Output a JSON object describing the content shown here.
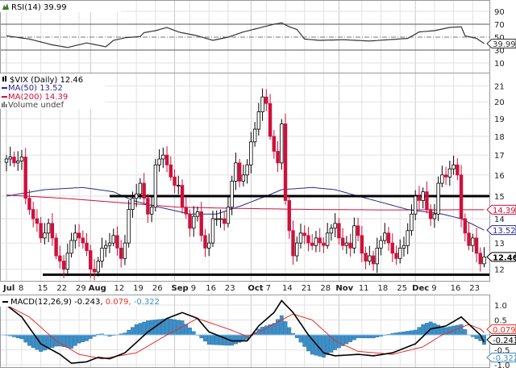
{
  "colors": {
    "up": "#000000",
    "down": "#d0103a",
    "ma50": "#2a2a90",
    "ma200": "#d0103a",
    "macd": "#000000",
    "signal": "#e8302a",
    "hist": "#3d8fc8",
    "support": "#000000"
  },
  "rsi_panel": {
    "label": "RSI(14)",
    "value": "39.99",
    "icon": "rsi-chart-icon"
  },
  "price_panel": {
    "label": "$VIX (Daily)",
    "value": "12.46",
    "legend": [
      {
        "name": "MA(50)",
        "value": "13.52",
        "color": "#2a2a90"
      },
      {
        "name": "MA(200)",
        "value": "14.39",
        "color": "#d0103a"
      },
      {
        "name": "Volume",
        "value": "undef",
        "color": "#555555"
      }
    ]
  },
  "macd_panel": {
    "label": "MACD(12,26,9)",
    "macd": "-0.243",
    "signal": "0.079",
    "hist": "-0.322"
  },
  "chart_data": {
    "type": "candlestick",
    "title": "$VIX (Daily)",
    "scale": "log",
    "ylim": [
      11.5,
      22
    ],
    "y_ticks": [
      12,
      13,
      14,
      15,
      16,
      17,
      18,
      19,
      20,
      21
    ],
    "support_lines": [
      15,
      11.8
    ],
    "x_ticks": [
      {
        "label": "Jul",
        "day": 0,
        "month": true
      },
      {
        "label": "8",
        "day": 4
      },
      {
        "label": "15",
        "day": 9
      },
      {
        "label": "22",
        "day": 14
      },
      {
        "label": "29",
        "day": 19
      },
      {
        "label": "Aug",
        "day": 22,
        "month": true
      },
      {
        "label": "12",
        "day": 29
      },
      {
        "label": "19",
        "day": 34
      },
      {
        "label": "26",
        "day": 39
      },
      {
        "label": "Sep",
        "day": 44,
        "month": true
      },
      {
        "label": "9",
        "day": 48
      },
      {
        "label": "16",
        "day": 53
      },
      {
        "label": "23",
        "day": 58
      },
      {
        "label": "Oct",
        "day": 64,
        "month": true
      },
      {
        "label": "7",
        "day": 68
      },
      {
        "label": "14",
        "day": 73
      },
      {
        "label": "21",
        "day": 78
      },
      {
        "label": "28",
        "day": 83
      },
      {
        "label": "Nov",
        "day": 87,
        "month": true
      },
      {
        "label": "11",
        "day": 93
      },
      {
        "label": "18",
        "day": 98
      },
      {
        "label": "25",
        "day": 103
      },
      {
        "label": "Dec",
        "day": 107,
        "month": true
      },
      {
        "label": "9",
        "day": 112
      },
      {
        "label": "16",
        "day": 117
      },
      {
        "label": "23",
        "day": 122
      }
    ],
    "close": [
      16.8,
      16.9,
      16.6,
      16.7,
      16.9,
      14.9,
      14.4,
      14.0,
      13.8,
      13.2,
      13.4,
      13.8,
      13.2,
      12.5,
      12.3,
      12.0,
      12.6,
      13.1,
      13.4,
      13.2,
      13.0,
      12.7,
      12.0,
      11.9,
      12.3,
      12.8,
      12.9,
      13.0,
      13.3,
      12.8,
      12.4,
      13.0,
      14.4,
      14.9,
      15.1,
      15.6,
      14.9,
      14.2,
      14.5,
      16.5,
      16.8,
      17.0,
      16.5,
      15.9,
      15.5,
      15.5,
      14.5,
      14.2,
      13.6,
      14.1,
      14.3,
      13.3,
      12.8,
      13.0,
      14.0,
      14.0,
      14.0,
      13.8,
      14.5,
      15.7,
      16.6,
      15.7,
      16.0,
      16.5,
      17.7,
      18.4,
      19.4,
      20.3,
      19.9,
      18.0,
      17.2,
      16.6,
      18.7,
      14.8,
      13.5,
      12.5,
      13.0,
      13.4,
      13.3,
      13.0,
      12.9,
      13.2,
      13.0,
      12.9,
      13.4,
      13.6,
      13.8,
      13.2,
      12.9,
      13.0,
      12.8,
      13.7,
      13.3,
      12.6,
      12.3,
      12.5,
      12.2,
      12.8,
      13.1,
      13.4,
      13.0,
      12.6,
      12.4,
      12.8,
      12.9,
      13.5,
      14.2,
      15.0,
      14.8,
      15.2,
      14.4,
      14.0,
      14.2,
      15.6,
      16.0,
      15.9,
      16.3,
      16.5,
      16.0,
      14.0,
      13.4,
      12.9,
      13.2,
      12.6,
      12.2,
      12.46
    ],
    "ma50": [
      [
        0,
        15.0
      ],
      [
        10,
        15.3
      ],
      [
        20,
        15.4
      ],
      [
        28,
        15.2
      ],
      [
        33,
        14.8
      ],
      [
        40,
        14.5
      ],
      [
        48,
        14.2
      ],
      [
        55,
        14.2
      ],
      [
        62,
        14.6
      ],
      [
        68,
        15.0
      ],
      [
        72,
        15.3
      ],
      [
        80,
        15.4
      ],
      [
        86,
        15.3
      ],
      [
        92,
        15.0
      ],
      [
        105,
        14.4
      ],
      [
        114,
        14.2
      ],
      [
        119,
        14.0
      ],
      [
        125,
        13.52
      ]
    ],
    "ma200": [
      [
        0,
        15.05
      ],
      [
        15,
        14.9
      ],
      [
        30,
        14.7
      ],
      [
        45,
        14.5
      ],
      [
        60,
        14.45
      ],
      [
        80,
        14.4
      ],
      [
        100,
        14.38
      ],
      [
        125,
        14.39
      ]
    ],
    "rsi": {
      "levels": [
        90,
        70,
        50,
        30,
        10
      ],
      "values": [
        [
          0,
          52
        ],
        [
          6,
          47
        ],
        [
          12,
          38
        ],
        [
          16,
          34
        ],
        [
          21,
          41
        ],
        [
          26,
          35
        ],
        [
          28,
          45
        ],
        [
          31,
          49
        ],
        [
          35,
          51
        ],
        [
          36,
          57
        ],
        [
          39,
          60
        ],
        [
          42,
          65
        ],
        [
          45,
          58
        ],
        [
          50,
          52
        ],
        [
          54,
          45
        ],
        [
          58,
          50
        ],
        [
          62,
          58
        ],
        [
          66,
          64
        ],
        [
          70,
          70
        ],
        [
          72,
          72
        ],
        [
          74,
          66
        ],
        [
          76,
          62
        ],
        [
          78,
          47
        ],
        [
          82,
          45
        ],
        [
          88,
          46
        ],
        [
          95,
          44
        ],
        [
          100,
          46
        ],
        [
          105,
          48
        ],
        [
          108,
          58
        ],
        [
          112,
          60
        ],
        [
          116,
          65
        ],
        [
          119,
          66
        ],
        [
          120,
          52
        ],
        [
          123,
          48
        ],
        [
          125,
          40
        ]
      ]
    },
    "macd": {
      "ticks": [
        "1.0",
        "0.5",
        "-0.5",
        "-1.0"
      ],
      "tick_values": [
        1.0,
        0.5,
        -0.5,
        -1.0
      ],
      "macd_line": [
        [
          0,
          1.0
        ],
        [
          4,
          0.6
        ],
        [
          9,
          -0.3
        ],
        [
          14,
          -0.65
        ],
        [
          17,
          -0.95
        ],
        [
          21,
          -0.9
        ],
        [
          24,
          -0.75
        ],
        [
          27,
          -0.8
        ],
        [
          31,
          -0.6
        ],
        [
          37,
          0.1
        ],
        [
          42,
          0.55
        ],
        [
          46,
          0.75
        ],
        [
          50,
          0.55
        ],
        [
          53,
          0.1
        ],
        [
          59,
          -0.2
        ],
        [
          63,
          -0.2
        ],
        [
          66,
          0.3
        ],
        [
          70,
          0.75
        ],
        [
          72,
          1.15
        ],
        [
          75,
          0.75
        ],
        [
          79,
          0.0
        ],
        [
          83,
          -0.6
        ],
        [
          86,
          -0.7
        ],
        [
          92,
          -0.65
        ],
        [
          96,
          -0.7
        ],
        [
          101,
          -0.6
        ],
        [
          107,
          -0.3
        ],
        [
          111,
          0.2
        ],
        [
          115,
          0.3
        ],
        [
          119,
          0.6
        ],
        [
          124,
          0.0
        ],
        [
          125,
          -0.243
        ]
      ],
      "signal_line": [
        [
          0,
          1.0
        ],
        [
          6,
          0.6
        ],
        [
          13,
          -0.2
        ],
        [
          19,
          -0.65
        ],
        [
          25,
          -0.8
        ],
        [
          34,
          -0.6
        ],
        [
          42,
          0.0
        ],
        [
          50,
          0.55
        ],
        [
          58,
          0.2
        ],
        [
          63,
          -0.05
        ],
        [
          67,
          0.15
        ],
        [
          72,
          0.5
        ],
        [
          75,
          0.7
        ],
        [
          80,
          0.5
        ],
        [
          86,
          -0.2
        ],
        [
          92,
          -0.55
        ],
        [
          101,
          -0.65
        ],
        [
          109,
          -0.4
        ],
        [
          114,
          0.0
        ],
        [
          121,
          0.35
        ],
        [
          124,
          0.2
        ],
        [
          125,
          0.079
        ]
      ]
    }
  }
}
